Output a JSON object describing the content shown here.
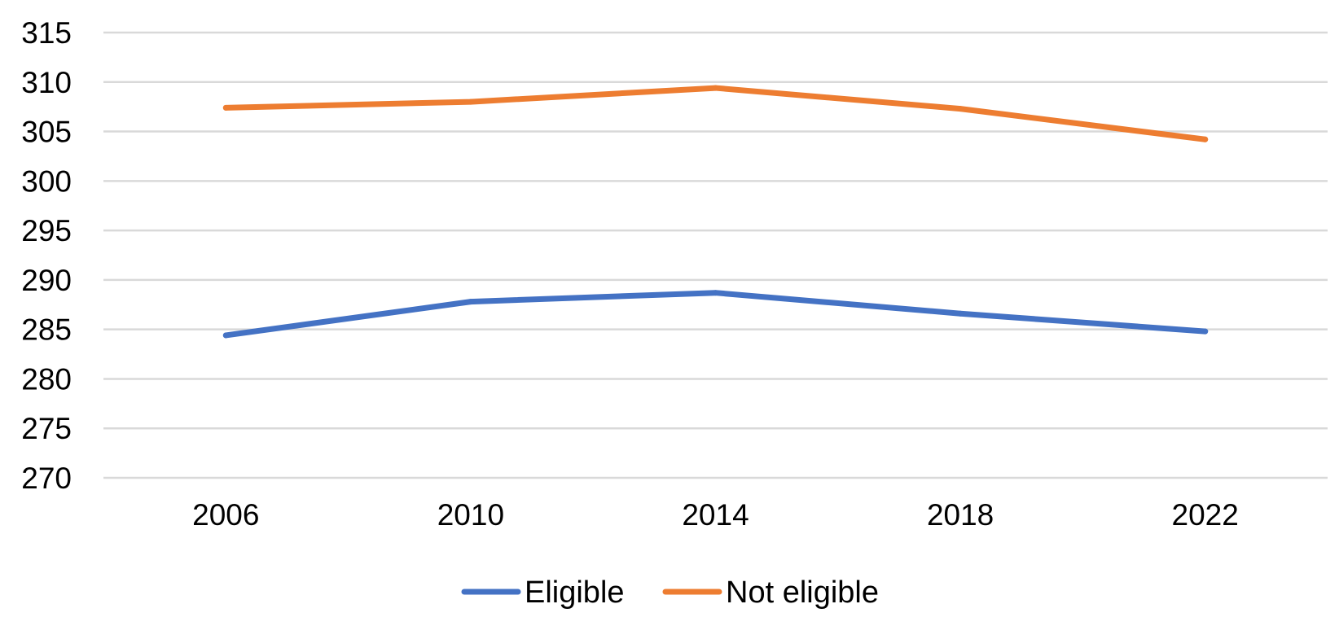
{
  "chart_data": {
    "type": "line",
    "title": "",
    "xlabel": "",
    "ylabel": "",
    "categories": [
      "2006",
      "2010",
      "2014",
      "2018",
      "2022"
    ],
    "ylim": [
      270,
      315
    ],
    "yticks": [
      270,
      275,
      280,
      285,
      290,
      295,
      300,
      305,
      310,
      315
    ],
    "grid": "horizontal",
    "legend_position": "bottom",
    "series": [
      {
        "name": "Eligible",
        "color": "#4472c4",
        "values": [
          284.4,
          287.8,
          288.7,
          286.6,
          284.8
        ]
      },
      {
        "name": "Not eligible",
        "color": "#ed7d31",
        "values": [
          307.4,
          308.0,
          309.4,
          307.3,
          304.2
        ]
      }
    ]
  }
}
